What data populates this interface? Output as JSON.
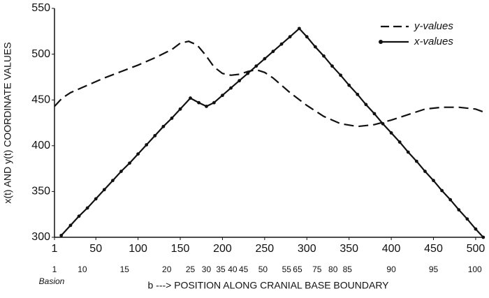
{
  "chart_data": {
    "type": "line",
    "xlabel": "b ---> POSITION ALONG CRANIAL BASE BOUNDARY",
    "ylabel": "x(t) AND y(t) COORDINATE VALUES",
    "xlim": [
      1,
      510
    ],
    "ylim": [
      300,
      550
    ],
    "xticks": [
      1,
      50,
      100,
      150,
      200,
      250,
      300,
      350,
      400,
      450,
      500
    ],
    "yticks": [
      300,
      350,
      400,
      450,
      500,
      550
    ],
    "x2ticks": [
      {
        "value": 1,
        "label": "1"
      },
      {
        "value": 34,
        "label": "10"
      },
      {
        "value": 84,
        "label": "15"
      },
      {
        "value": 134,
        "label": "20"
      },
      {
        "value": 162,
        "label": "25"
      },
      {
        "value": 181,
        "label": "30"
      },
      {
        "value": 198,
        "label": "35"
      },
      {
        "value": 212,
        "label": "40"
      },
      {
        "value": 225,
        "label": "45"
      },
      {
        "value": 248,
        "label": "50"
      },
      {
        "value": 276,
        "label": "55"
      },
      {
        "value": 289,
        "label": "65"
      },
      {
        "value": 312,
        "label": "75"
      },
      {
        "value": 331,
        "label": "80"
      },
      {
        "value": 348,
        "label": "85"
      },
      {
        "value": 400,
        "label": "90"
      },
      {
        "value": 450,
        "label": "95"
      },
      {
        "value": 499,
        "label": "100"
      }
    ],
    "x2_note": "Basion",
    "series": [
      {
        "name": "y-values",
        "color": "#111111",
        "dashed": true,
        "markers": false,
        "x": [
          1,
          10,
          20,
          40,
          60,
          80,
          100,
          120,
          140,
          150,
          160,
          170,
          180,
          190,
          200,
          210,
          220,
          230,
          240,
          250,
          260,
          280,
          300,
          320,
          340,
          360,
          380,
          400,
          420,
          440,
          460,
          480,
          500,
          509
        ],
        "values": [
          443,
          452,
          458,
          466,
          474,
          481,
          488,
          496,
          505,
          512,
          514,
          510,
          499,
          486,
          479,
          477,
          478,
          481,
          483,
          480,
          474,
          458,
          444,
          432,
          424,
          421,
          423,
          428,
          434,
          440,
          442,
          442,
          440,
          437
        ]
      },
      {
        "name": "x-values",
        "color": "#111111",
        "dashed": false,
        "markers": true,
        "x": [
          9,
          20,
          30,
          40,
          50,
          60,
          70,
          80,
          90,
          100,
          110,
          120,
          130,
          140,
          150,
          162,
          172,
          181,
          190,
          200,
          210,
          220,
          230,
          240,
          250,
          260,
          270,
          280,
          291,
          300,
          310,
          320,
          330,
          340,
          350,
          360,
          370,
          380,
          390,
          400,
          410,
          420,
          430,
          440,
          450,
          460,
          470,
          480,
          490,
          500,
          509
        ],
        "values": [
          302,
          313,
          323,
          332,
          342,
          352,
          362,
          372,
          381,
          391,
          401,
          411,
          421,
          430,
          440,
          452,
          447,
          443,
          447,
          455,
          463,
          471,
          479,
          487,
          495,
          503,
          511,
          519,
          528,
          519,
          508,
          498,
          487,
          477,
          466,
          456,
          445,
          435,
          424,
          414,
          404,
          393,
          383,
          372,
          362,
          351,
          341,
          330,
          320,
          309,
          300
        ]
      }
    ],
    "legend": "upper right"
  }
}
